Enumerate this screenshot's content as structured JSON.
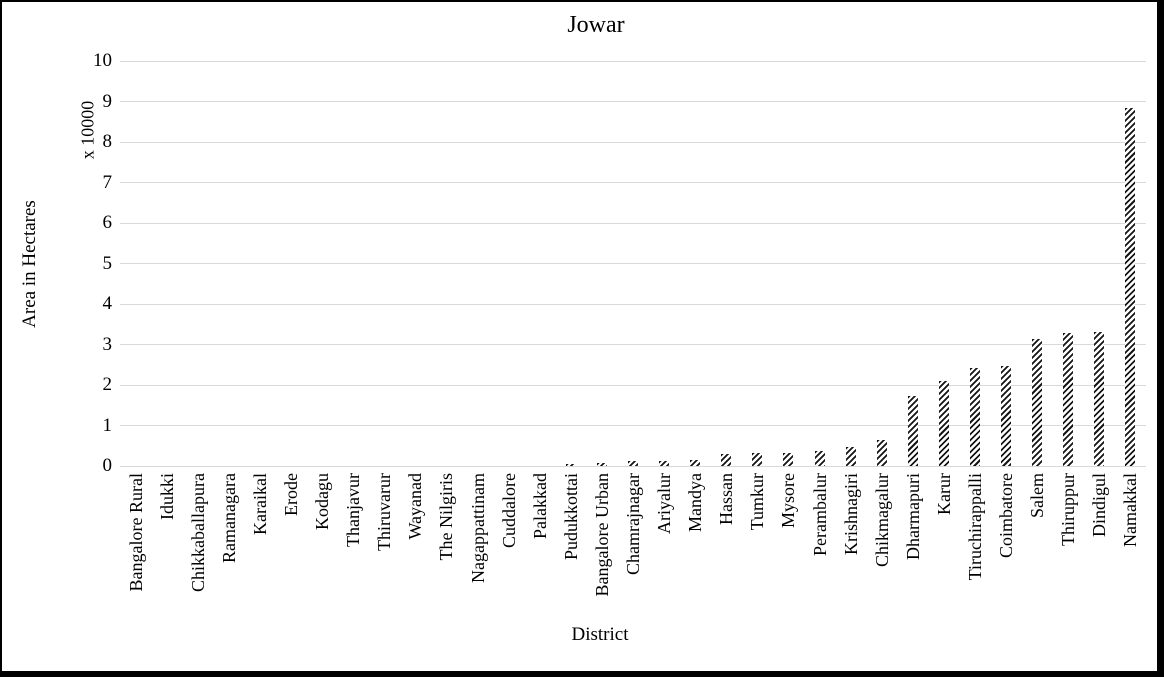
{
  "chart_data": {
    "type": "bar",
    "title": "Jowar",
    "xlabel": "District",
    "ylabel": "Area in Hectares",
    "y_axis_note": "x 10000",
    "ylim": [
      0,
      10
    ],
    "ytick_step": 1,
    "grid": true,
    "legend": false,
    "bar_style": "black-white-diagonal-hatch",
    "categories": [
      "Bangalore Rural",
      "Idukki",
      "Chikkaballapura",
      "Ramanagara",
      "Karaikal",
      "Erode",
      "Kodagu",
      "Thanjavur",
      "Thiruvarur",
      "Wayanad",
      "The Nilgiris",
      "Nagappattinam",
      "Cuddalore",
      "Palakkad",
      "Pudukkottai",
      "Bangalore Urban",
      "Chamrajnagar",
      "Ariyalur",
      "Mandya",
      "Hassan",
      "Tumkur",
      "Mysore",
      "Perambalur",
      "Krishnagiri",
      "Chikmagalur",
      "Dharmapuri",
      "Karur",
      "Tiruchirappalli",
      "Coimbatore",
      "Salem",
      "Thiruppur",
      "Dindigul",
      "Namakkal"
    ],
    "values": [
      0,
      0,
      0,
      0,
      0,
      0,
      0,
      0,
      0,
      0,
      0,
      0,
      0,
      0,
      0.05,
      0.08,
      0.12,
      0.12,
      0.14,
      0.3,
      0.32,
      0.33,
      0.36,
      0.48,
      0.63,
      1.73,
      2.1,
      2.42,
      2.46,
      3.13,
      3.28,
      3.32,
      8.85
    ]
  },
  "colors": {
    "background": "#ffffff",
    "gridline": "#d9d9d9",
    "text": "#000000",
    "hatch_dark": "#161616",
    "frame_border": "#000000"
  }
}
